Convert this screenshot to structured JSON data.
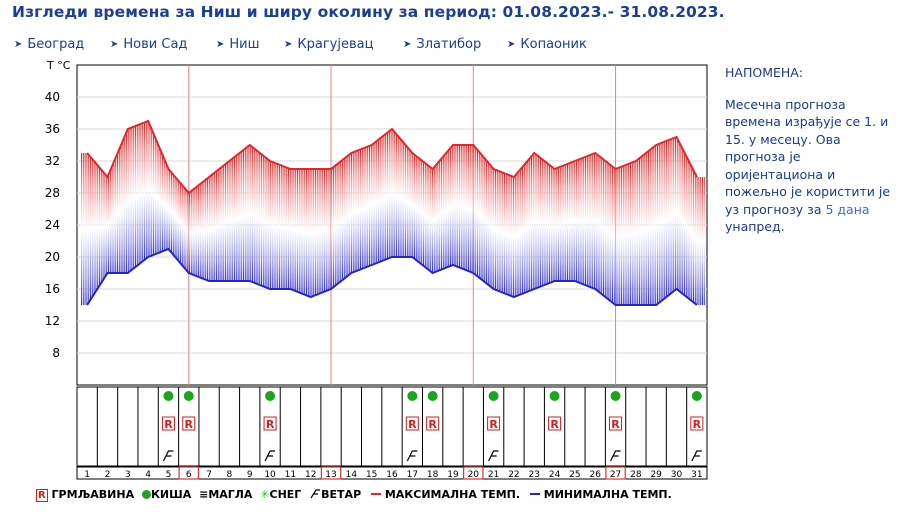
{
  "title": "Изгледи времена за Ниш и ширу околину за период: 01.08.2023.- 31.08.2023.",
  "nav": {
    "arrow": "➤",
    "items": [
      "Београд",
      "Нови Сад",
      "Ниш",
      "Крагујевац",
      "Златибор",
      "Копаоник"
    ]
  },
  "note": {
    "heading": "НАПОМЕНА:",
    "text_before": "Месечна прогноза времена израђује се 1. и 15. у месецу. Ова прогноза је оријентациона и пожељно је користити је уз прогнозу за ",
    "highlight": "5 дана",
    "text_after": " унапред."
  },
  "legend": {
    "thunder_symbol": "R",
    "thunder": "ГРМЉАВИНА",
    "rain": "КИША",
    "fog_symbol": "≡",
    "fog": "МАГЛА",
    "snow_symbol": "✳",
    "snow": "СНЕГ",
    "wind": "ВЕТАР",
    "max": "МАКСИМАЛНА ТЕМП.",
    "min": "МИНИМАЛНА ТЕМП."
  },
  "colors": {
    "max_line": "#e0282a",
    "min_line": "#2424c8",
    "rain": "#1aa51a",
    "grid": "#d8d8d8",
    "sunday_line": "#f08080",
    "title": "#1c3f94"
  },
  "chart_data": {
    "type": "line",
    "ylabel": "T °C",
    "yticks": [
      8,
      12,
      16,
      20,
      24,
      28,
      32,
      36,
      40
    ],
    "ylim": [
      4,
      44
    ],
    "days": [
      1,
      2,
      3,
      4,
      5,
      6,
      7,
      8,
      9,
      10,
      11,
      12,
      13,
      14,
      15,
      16,
      17,
      18,
      19,
      20,
      21,
      22,
      23,
      24,
      25,
      26,
      27,
      28,
      29,
      30,
      31
    ],
    "series": [
      {
        "name": "МАКСИМАЛНА ТЕМП.",
        "values": [
          33,
          30,
          36,
          37,
          31,
          28,
          30,
          32,
          34,
          32,
          31,
          31,
          31,
          33,
          34,
          36,
          33,
          31,
          34,
          34,
          31,
          30,
          33,
          31,
          32,
          33,
          31,
          32,
          34,
          35,
          30
        ]
      },
      {
        "name": "МИНИМАЛНА ТЕМП.",
        "values": [
          14,
          18,
          18,
          20,
          21,
          18,
          17,
          17,
          17,
          16,
          16,
          15,
          16,
          18,
          19,
          20,
          20,
          18,
          19,
          18,
          16,
          15,
          16,
          17,
          17,
          16,
          14,
          14,
          14,
          16,
          14
        ]
      }
    ],
    "sundays": [
      6,
      13,
      20,
      27
    ],
    "rain_days": [
      5,
      6,
      10,
      17,
      18,
      21,
      24,
      27,
      31
    ],
    "thunder_days": [
      5,
      6,
      10,
      17,
      18,
      21,
      24,
      27,
      31
    ],
    "wind_days": [
      5,
      10,
      17,
      21,
      27,
      31
    ]
  }
}
